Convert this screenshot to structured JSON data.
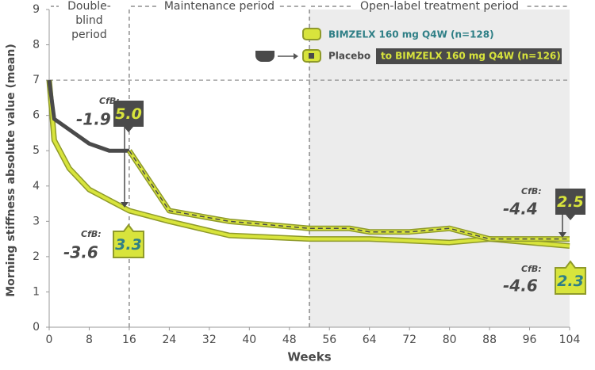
{
  "chart_data": {
    "type": "line",
    "xlabel": "Weeks",
    "ylabel": "Morning stiffness absolute value (mean)",
    "xlim": [
      0,
      104
    ],
    "xticks": [
      0,
      8,
      16,
      24,
      32,
      40,
      48,
      56,
      64,
      72,
      80,
      88,
      96,
      104
    ],
    "ylim": [
      0,
      9
    ],
    "yticks": [
      0,
      1,
      2,
      3,
      4,
      5,
      6,
      7,
      8,
      9
    ],
    "reference_line": 7,
    "periods": [
      {
        "label": "Double-blind period",
        "start": 0,
        "end": 16
      },
      {
        "label": "Maintenance period",
        "start": 16,
        "end": 52
      },
      {
        "label": "Open-label treatment period",
        "start": 52,
        "end": 104
      }
    ],
    "series": [
      {
        "name": "BIMZELX 160 mg Q4W (n=128)",
        "color": "#d8e43c",
        "x": [
          0,
          1,
          4,
          8,
          12,
          16,
          24,
          36,
          52,
          64,
          80,
          88,
          104
        ],
        "values": [
          7.0,
          5.3,
          4.5,
          3.9,
          3.6,
          3.3,
          3.0,
          2.6,
          2.5,
          2.5,
          2.4,
          2.5,
          2.3
        ]
      },
      {
        "name": "Placebo",
        "color": "#4a4a4a",
        "x": [
          0,
          1,
          4,
          8,
          12,
          16
        ],
        "values": [
          7.0,
          5.9,
          5.6,
          5.2,
          5.0,
          5.0
        ]
      },
      {
        "name": "to BIMZELX 160 mg Q4W (n=126)",
        "color": "#d8e43c",
        "x": [
          16,
          24,
          36,
          52,
          60,
          64,
          72,
          80,
          88,
          104
        ],
        "values": [
          5.0,
          3.3,
          3.0,
          2.8,
          2.8,
          2.7,
          2.7,
          2.8,
          2.5,
          2.5
        ]
      }
    ],
    "annotations": [
      {
        "x": 16,
        "cfb": "CfB:",
        "change": -1.9,
        "value": {
          "value": 5,
          "label": "5.0"
        }
      },
      {
        "x": 16,
        "cfb": "CfB:",
        "change": -3.6,
        "value": 3.3
      },
      {
        "x": 104,
        "cfb": "CfB:",
        "change": -4.4,
        "value": 2.5
      },
      {
        "x": 104,
        "cfb": "CfB:",
        "change": -4.6,
        "value": 2.3
      }
    ]
  }
}
